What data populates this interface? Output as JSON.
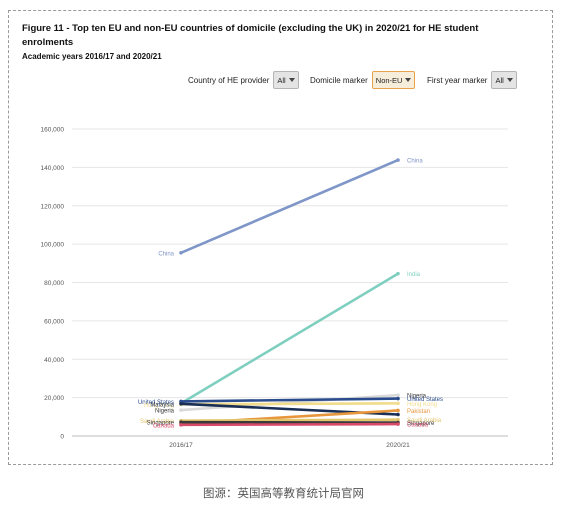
{
  "title": "Figure 11 - Top ten EU and non-EU countries of domicile (excluding the UK) in 2020/21 for HE student enrolments",
  "subtitle": "Academic years 2016/17 and 2020/21",
  "filters": [
    {
      "label": "Country of HE provider",
      "value": "All"
    },
    {
      "label": "Domicile marker",
      "value": "Non-EU"
    },
    {
      "label": "First year marker",
      "value": "All"
    }
  ],
  "caption": "图源：英国高等教育统计局官网",
  "chart_data": {
    "type": "line",
    "x": [
      "2016/17",
      "2020/21"
    ],
    "ylim": [
      0,
      160000
    ],
    "yticks": [
      0,
      20000,
      40000,
      60000,
      80000,
      100000,
      120000,
      140000,
      160000
    ],
    "ytick_labels": [
      "0",
      "20,000",
      "40,000",
      "60,000",
      "80,000",
      "100,000",
      "120,000",
      "140,000",
      "160,000"
    ],
    "grid": true,
    "series": [
      {
        "name": "China",
        "values": [
          95500,
          143800
        ],
        "color": "#7f96c8",
        "label_start": "China",
        "label_end": "China"
      },
      {
        "name": "India",
        "values": [
          17000,
          84600
        ],
        "color": "#7fcfc0",
        "label_start": "",
        "label_end": "India"
      },
      {
        "name": "Nigeria",
        "values": [
          13500,
          21300
        ],
        "color": "#d9d9d9",
        "label_start": "Nigeria",
        "label_end": "Nigeria"
      },
      {
        "name": "United States",
        "values": [
          18000,
          19500
        ],
        "color": "#2b4c8c",
        "label_start": "United States",
        "label_end": "United States"
      },
      {
        "name": "Hong Kong",
        "values": [
          16500,
          17000
        ],
        "color": "#f0dc8a",
        "label_start": "Hong Kong",
        "label_end": "Hong Kong"
      },
      {
        "name": "Malaysia",
        "values": [
          16800,
          11200
        ],
        "color": "#1a2f55",
        "label_start": "Malaysia",
        "label_end": ""
      },
      {
        "name": "Pakistan",
        "values": [
          6500,
          13300
        ],
        "color": "#e8963c",
        "label_start": "",
        "label_end": "Pakistan"
      },
      {
        "name": "Saudi Arabia",
        "values": [
          8000,
          8500
        ],
        "color": "#e3c56b",
        "label_start": "Saudi Arabia",
        "label_end": "Saudi Arabia"
      },
      {
        "name": "Singapore",
        "values": [
          7200,
          7000
        ],
        "color": "#3a3a3a",
        "label_start": "Singapore",
        "label_end": "Singapore"
      },
      {
        "name": "Canada",
        "values": [
          5800,
          6200
        ],
        "color": "#d94a6a",
        "label_start": "Canada",
        "label_end": "Canada"
      }
    ]
  }
}
